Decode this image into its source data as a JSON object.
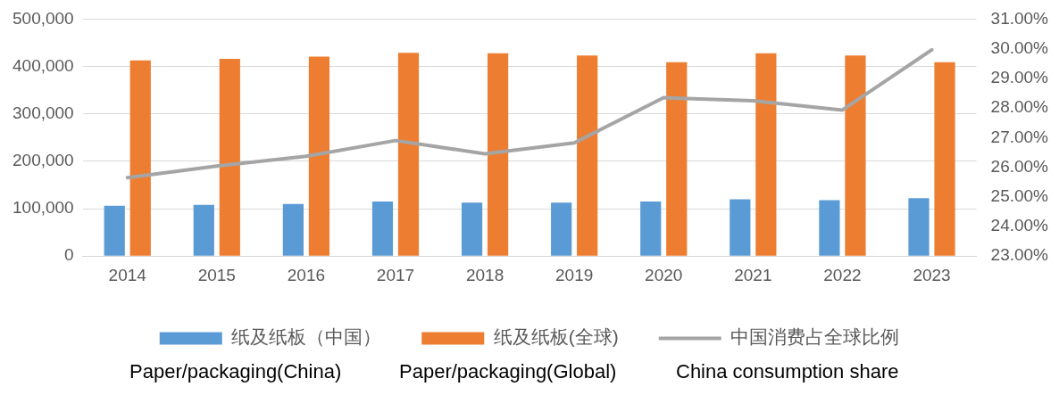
{
  "chart_data": {
    "type": "bar",
    "categories": [
      "2014",
      "2015",
      "2016",
      "2017",
      "2018",
      "2019",
      "2020",
      "2021",
      "2022",
      "2023"
    ],
    "series": [
      {
        "name": "纸及纸板（中国）",
        "color": "#5b9bd5",
        "values": [
          106000,
          108000,
          110000,
          115000,
          113000,
          113000,
          115000,
          120000,
          118000,
          122000
        ]
      },
      {
        "name": "纸及纸板(全球)",
        "color": "#ed7d31",
        "values": [
          413000,
          416000,
          421000,
          429000,
          428000,
          423000,
          409000,
          428000,
          423000,
          409000
        ]
      },
      {
        "name": "中国消费占全球比例",
        "type": "line",
        "axis": "y2",
        "color": "#a5a5a5",
        "values": [
          25.65,
          26.04,
          26.37,
          26.9,
          26.45,
          26.82,
          28.35,
          28.24,
          27.93,
          29.96
        ]
      }
    ],
    "ylim": [
      0,
      500000
    ],
    "yticks": [
      {
        "value": 0,
        "label": "0"
      },
      {
        "value": 100000,
        "label": "100,000"
      },
      {
        "value": 200000,
        "label": "200,000"
      },
      {
        "value": 300000,
        "label": "300,000"
      },
      {
        "value": 400000,
        "label": "400,000"
      },
      {
        "value": 500000,
        "label": "500,000"
      }
    ],
    "y2lim": [
      23,
      31
    ],
    "y2ticks": [
      {
        "value": 23,
        "label": "23.00%"
      },
      {
        "value": 24,
        "label": "24.00%"
      },
      {
        "value": 25,
        "label": "25.00%"
      },
      {
        "value": 26,
        "label": "26.00%"
      },
      {
        "value": 27,
        "label": "27.00%"
      },
      {
        "value": 28,
        "label": "28.00%"
      },
      {
        "value": 29,
        "label": "29.00%"
      },
      {
        "value": 30,
        "label": "30.00%"
      },
      {
        "value": 31,
        "label": "31.00%"
      }
    ],
    "grid": "y",
    "legend": "bottom",
    "marker": "none",
    "line_style": "solid",
    "annotations": [
      "Paper/packaging(China)",
      "Paper/packaging(Global)",
      "China consumption share"
    ]
  }
}
